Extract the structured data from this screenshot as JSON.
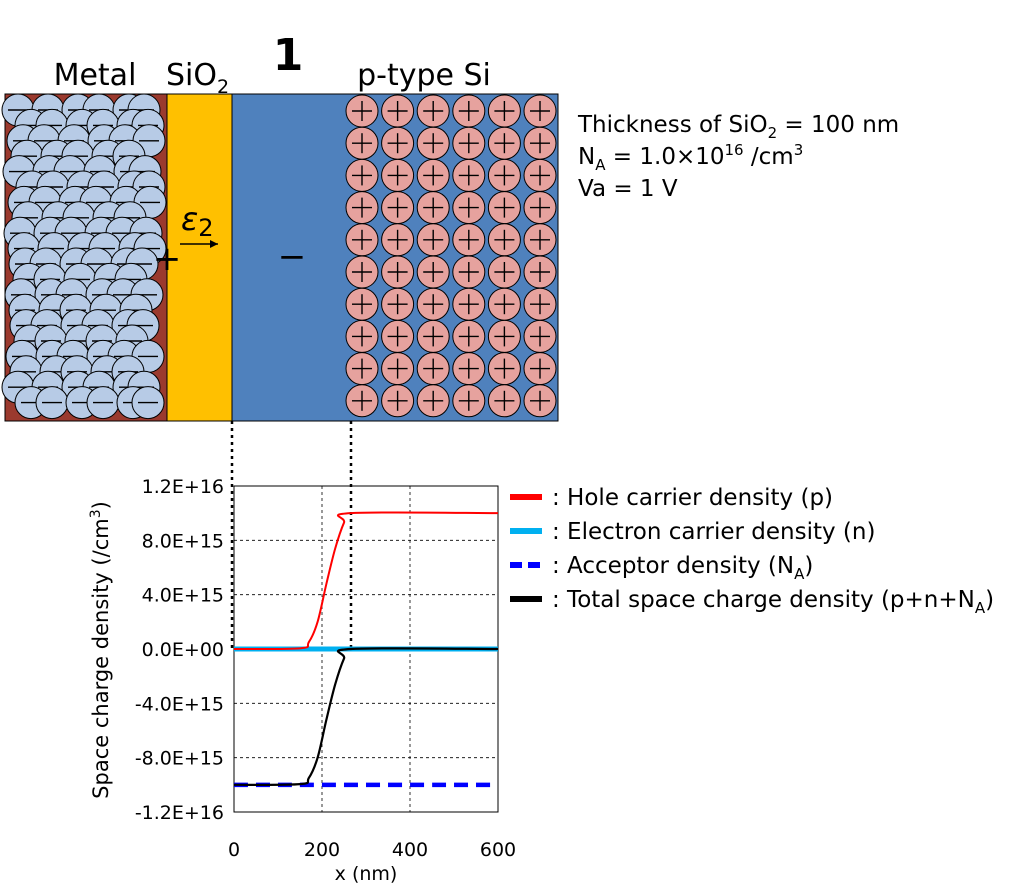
{
  "diagram": {
    "case_number": "1",
    "metal_label": "Metal",
    "oxide_label": {
      "base": "SiO",
      "sub": "2"
    },
    "semiconductor_label": "p-type Si",
    "field_label": {
      "symbol": "ε",
      "sub": "2"
    },
    "plus_sign": "+",
    "minus_sign": "−",
    "colors": {
      "metal": "#9b3a2e",
      "oxide": "#ffc000",
      "silicon": "#4f81bd",
      "electron": "#b7cbe6",
      "hole": "#e6a29e"
    },
    "info": {
      "thickness": {
        "prefix": "Thickness of SiO",
        "sub": "2",
        "suffix": " = 100 nm"
      },
      "acceptor": {
        "prefix": "N",
        "sub": "A",
        "middle": " = 1.0×10",
        "sup": "16",
        "tail": " /cm",
        "sup2": "3"
      },
      "voltage": "Va = 1 V"
    }
  },
  "chart_data": {
    "type": "line",
    "ylabel": {
      "prefix": "Space charge density (/cm",
      "sup": "3",
      "suffix": ")"
    },
    "xlabel": "x (nm)",
    "xlim": [
      0,
      600
    ],
    "ylim": [
      -1.2e+16,
      1.2e+16
    ],
    "xticks": [
      0,
      200,
      400,
      600
    ],
    "xtick_labels": [
      "0",
      "200",
      "400",
      "600"
    ],
    "yticks": [
      1.2e+16,
      8000000000000000.0,
      4000000000000000.0,
      0,
      -4000000000000000.0,
      -8000000000000000.0,
      -1.2e+16
    ],
    "ytick_labels": [
      "1.2E+16",
      "8.0E+15",
      "4.0E+15",
      "0.0E+00",
      "-4.0E+15",
      "-8.0E+15",
      "-1.2E+16"
    ],
    "grid": true,
    "legend_position": "right",
    "series": [
      {
        "name": "Hole carrier density (p)",
        "legend": {
          "prefix": ": Hole carrier density (p)"
        },
        "color": "#ff0000",
        "dash": "solid",
        "x": [
          0,
          150,
          170,
          190,
          210,
          230,
          250,
          265,
          600
        ],
        "y": [
          0,
          50000000000000.0,
          500000000000000.0,
          2000000000000000.0,
          4800000000000000.0,
          7400000000000000.0,
          9300000000000000.0,
          1e+16,
          1e+16
        ]
      },
      {
        "name": "Electron carrier density (n)",
        "legend": {
          "prefix": ": Electron carrier density (n)"
        },
        "color": "#00b0f0",
        "dash": "solid",
        "x": [
          0,
          600
        ],
        "y": [
          0,
          0
        ]
      },
      {
        "name": "Acceptor density (NA)",
        "legend": {
          "prefix": ": Acceptor density (N",
          "sub": "A",
          "suffix": ")"
        },
        "color": "#0000ff",
        "dash": "dashed",
        "x": [
          0,
          600
        ],
        "y": [
          -1e+16,
          -1e+16
        ]
      },
      {
        "name": "Total space charge density (p+n+NA)",
        "legend": {
          "prefix": ": Total space charge density (p+n+N",
          "sub": "A",
          "suffix": ")"
        },
        "color": "#000000",
        "dash": "solid",
        "x": [
          0,
          150,
          170,
          190,
          210,
          230,
          250,
          265,
          600
        ],
        "y": [
          -1e+16,
          -9950000000000000.0,
          -9500000000000000.0,
          -8000000000000000.0,
          -5200000000000000.0,
          -2600000000000000.0,
          -700000000000000.0,
          0,
          0
        ]
      }
    ]
  }
}
